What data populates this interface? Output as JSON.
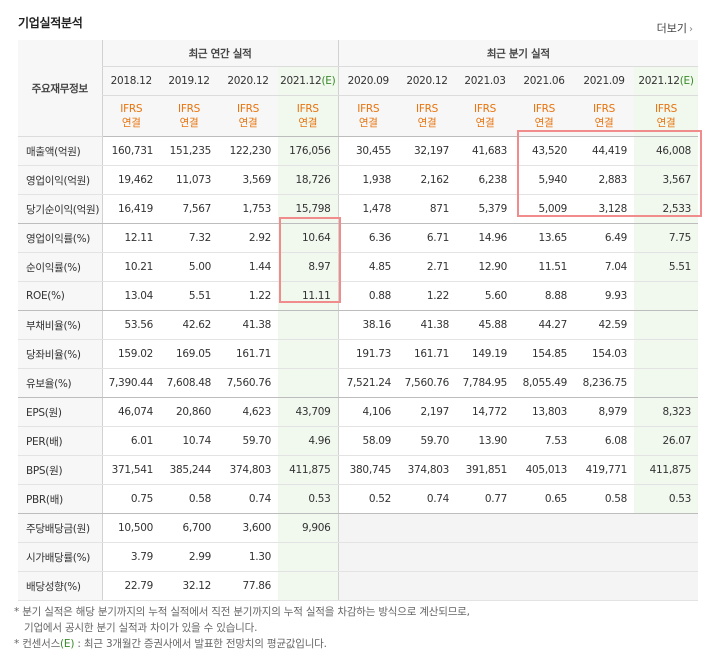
{
  "title": "기업실적분석",
  "more_label": "더보기",
  "header": {
    "row_label": "주요재무정보",
    "annual_title": "최근 연간 실적",
    "quarter_title": "최근 분기 실적",
    "annual_periods": [
      "2018.12",
      "2019.12",
      "2020.12",
      "2021.12"
    ],
    "annual_estimate_mark": "(E)",
    "quarter_periods": [
      "2020.09",
      "2020.12",
      "2021.03",
      "2021.06",
      "2021.09",
      "2021.12"
    ],
    "quarter_estimate_mark": "(E)",
    "ifrs_top": "IFRS",
    "ifrs_bottom": "연결"
  },
  "rows": [
    {
      "label": "매출액(억원)",
      "values": [
        "160,731",
        "151,235",
        "122,230",
        "176,056",
        "30,455",
        "32,197",
        "41,683",
        "43,520",
        "44,419",
        "46,008"
      ]
    },
    {
      "label": "영업이익(억원)",
      "values": [
        "19,462",
        "11,073",
        "3,569",
        "18,726",
        "1,938",
        "2,162",
        "6,238",
        "5,940",
        "2,883",
        "3,567"
      ]
    },
    {
      "label": "당기순이익(억원)",
      "values": [
        "16,419",
        "7,567",
        "1,753",
        "15,798",
        "1,478",
        "871",
        "5,379",
        "5,009",
        "3,128",
        "2,533"
      ]
    },
    {
      "label": "영업이익률(%)",
      "values": [
        "12.11",
        "7.32",
        "2.92",
        "10.64",
        "6.36",
        "6.71",
        "14.96",
        "13.65",
        "6.49",
        "7.75"
      ]
    },
    {
      "label": "순이익률(%)",
      "values": [
        "10.21",
        "5.00",
        "1.44",
        "8.97",
        "4.85",
        "2.71",
        "12.90",
        "11.51",
        "7.04",
        "5.51"
      ]
    },
    {
      "label": "ROE(%)",
      "values": [
        "13.04",
        "5.51",
        "1.22",
        "11.11",
        "0.88",
        "1.22",
        "5.60",
        "8.88",
        "9.93",
        ""
      ]
    },
    {
      "label": "부채비율(%)",
      "values": [
        "53.56",
        "42.62",
        "41.38",
        "",
        "38.16",
        "41.38",
        "45.88",
        "44.27",
        "42.59",
        ""
      ]
    },
    {
      "label": "당좌비율(%)",
      "values": [
        "159.02",
        "169.05",
        "161.71",
        "",
        "191.73",
        "161.71",
        "149.19",
        "154.85",
        "154.03",
        ""
      ]
    },
    {
      "label": "유보율(%)",
      "values": [
        "7,390.44",
        "7,608.48",
        "7,560.76",
        "",
        "7,521.24",
        "7,560.76",
        "7,784.95",
        "8,055.49",
        "8,236.75",
        ""
      ]
    },
    {
      "label": "EPS(원)",
      "values": [
        "46,074",
        "20,860",
        "4,623",
        "43,709",
        "4,106",
        "2,197",
        "14,772",
        "13,803",
        "8,979",
        "8,323"
      ]
    },
    {
      "label": "PER(배)",
      "values": [
        "6.01",
        "10.74",
        "59.70",
        "4.96",
        "58.09",
        "59.70",
        "13.90",
        "7.53",
        "6.08",
        "26.07"
      ]
    },
    {
      "label": "BPS(원)",
      "values": [
        "371,541",
        "385,244",
        "374,803",
        "411,875",
        "380,745",
        "374,803",
        "391,851",
        "405,013",
        "419,771",
        "411,875"
      ]
    },
    {
      "label": "PBR(배)",
      "values": [
        "0.75",
        "0.58",
        "0.74",
        "0.53",
        "0.52",
        "0.74",
        "0.77",
        "0.65",
        "0.58",
        "0.53"
      ]
    },
    {
      "label": "주당배당금(원)",
      "values": [
        "10,500",
        "6,700",
        "3,600",
        "9,906",
        "",
        "",
        "",
        "",
        "",
        ""
      ]
    },
    {
      "label": "시가배당률(%)",
      "values": [
        "3.79",
        "2.99",
        "1.30",
        "",
        "",
        "",
        "",
        "",
        "",
        ""
      ]
    },
    {
      "label": "배당성향(%)",
      "values": [
        "22.79",
        "32.12",
        "77.86",
        "",
        "",
        "",
        "",
        "",
        "",
        ""
      ]
    }
  ],
  "notes": {
    "line1": "* 분기 실적은 해당 분기까지의 누적 실적에서 직전 분기까지의 누적 실적을 차감하는 방식으로 계산되므로,",
    "line2": "기업에서 공시한 분기 실적과 차이가 있을 수 있습니다.",
    "line3_prefix": "* 컨센서스",
    "line3_e": "(E)",
    "line3_suffix": ": 최근 3개월간 증권사에서 발표한 전망치의 평균값입니다."
  },
  "colors": {
    "ifrs": "#e8730c",
    "estimate": "#3a8a2a",
    "highlight_box": "#f08c8c",
    "estimate_col_bg": "#f1f8ee"
  }
}
